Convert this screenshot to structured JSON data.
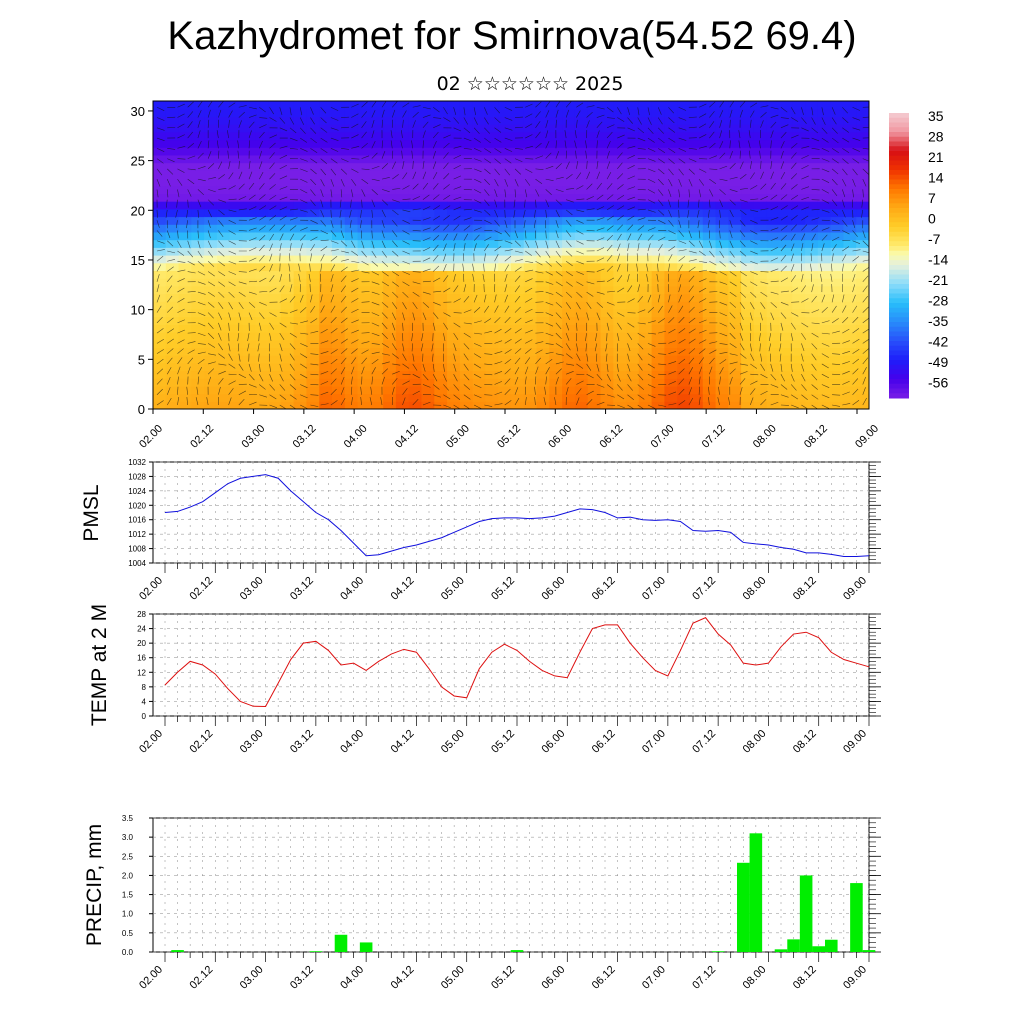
{
  "title": "Kazhydromet for Smirnova(54.52 69.4)",
  "subtitle": "02 ☆☆☆☆☆☆ 2025",
  "colors": {
    "pmsl_line": "#1010dd",
    "temp_line": "#dd1010",
    "precip_bar": "#00ee00",
    "frame": "#000000"
  },
  "chart_data": [
    {
      "type": "heatmap",
      "name_text": "",
      "x_tick_labels": [
        "02.00",
        "02.12",
        "03.00",
        "03.12",
        "04.00",
        "04.12",
        "05.00",
        "05.12",
        "06.00",
        "06.12",
        "07.00",
        "07.12",
        "08.00",
        "08.12",
        "09.00"
      ],
      "ylim": [
        0,
        31
      ],
      "y_ticks": [
        0,
        5,
        10,
        15,
        20,
        25,
        30
      ],
      "colorbar_labels": [
        "35",
        "28",
        "21",
        "14",
        "7",
        "0",
        "-7",
        "-14",
        "-21",
        "-28",
        "-35",
        "-42",
        "-49",
        "-56"
      ],
      "colorbar_range": [
        -63,
        42
      ],
      "overlay": "wind barbs and streamlines",
      "description_values": {
        "surface_warm_cores_x": [
          3.3,
          4.9,
          8.3,
          10.3
        ],
        "tropopause_height_km": 21
      }
    },
    {
      "type": "line",
      "ylabel": "PMSL",
      "x_tick_labels": [
        "02.00",
        "02.12",
        "03.00",
        "03.12",
        "04.00",
        "04.12",
        "05.00",
        "05.12",
        "06.00",
        "06.12",
        "07.00",
        "07.12",
        "08.00",
        "08.12",
        "09.00"
      ],
      "ylim": [
        1004,
        1032
      ],
      "y_ticks": [
        1004,
        1008,
        1012,
        1016,
        1020,
        1024,
        1028,
        1032
      ],
      "series": [
        {
          "x": [
            0,
            0.25,
            0.5,
            0.75,
            1.0,
            1.25,
            1.5,
            1.75,
            2.0,
            2.25,
            2.5,
            2.75,
            3.0,
            3.25,
            3.5,
            3.75,
            4.0,
            4.25,
            4.5,
            4.75,
            5.0,
            5.25,
            5.5,
            5.75,
            6.0,
            6.25,
            6.5,
            6.75,
            7.0,
            7.25,
            7.5,
            7.75,
            8.0,
            8.25,
            8.5,
            8.75,
            9.0,
            9.25,
            9.5,
            9.75,
            10.0,
            10.25,
            10.5,
            10.75,
            11.0,
            11.25,
            11.5,
            11.75,
            12.0,
            12.25,
            12.5,
            12.75,
            13.0,
            13.25,
            13.5,
            13.75,
            14.0
          ],
          "values": [
            1018,
            1018.3,
            1019.5,
            1021,
            1023.5,
            1026,
            1027.5,
            1028,
            1028.5,
            1027.5,
            1024,
            1021,
            1018,
            1016,
            1013,
            1009.5,
            1006,
            1006.3,
            1007.3,
            1008.3,
            1009,
            1010,
            1011,
            1012.5,
            1014,
            1015.5,
            1016.3,
            1016.5,
            1016.5,
            1016.3,
            1016.5,
            1017,
            1018,
            1019,
            1018.8,
            1018,
            1016.5,
            1016.7,
            1016,
            1015.8,
            1016,
            1015.5,
            1013,
            1012.8,
            1013,
            1012.5,
            1009.7,
            1009.3,
            1009,
            1008.3,
            1007.8,
            1006.8,
            1006.8,
            1006.4,
            1005.8,
            1005.8,
            1006
          ]
        }
      ]
    },
    {
      "type": "line",
      "ylabel": "TEMP at 2 M",
      "x_tick_labels": [
        "02.00",
        "02.12",
        "03.00",
        "03.12",
        "04.00",
        "04.12",
        "05.00",
        "05.12",
        "06.00",
        "06.12",
        "07.00",
        "07.12",
        "08.00",
        "08.12",
        "09.00"
      ],
      "ylim": [
        0,
        28
      ],
      "y_ticks": [
        0,
        4,
        8,
        12,
        16,
        20,
        24,
        28
      ],
      "series": [
        {
          "x": [
            0,
            0.25,
            0.5,
            0.75,
            1.0,
            1.25,
            1.5,
            1.75,
            2.0,
            2.25,
            2.5,
            2.75,
            3.0,
            3.25,
            3.5,
            3.75,
            4.0,
            4.25,
            4.5,
            4.75,
            5.0,
            5.25,
            5.5,
            5.75,
            6.0,
            6.25,
            6.5,
            6.75,
            7.0,
            7.25,
            7.5,
            7.75,
            8.0,
            8.25,
            8.5,
            8.75,
            9.0,
            9.25,
            9.5,
            9.75,
            10.0,
            10.25,
            10.5,
            10.75,
            11.0,
            11.25,
            11.5,
            11.75,
            12.0,
            12.25,
            12.5,
            12.75,
            13.0,
            13.25,
            13.5,
            13.75,
            14.0
          ],
          "values": [
            8.5,
            12,
            15,
            14,
            11.5,
            7.5,
            4,
            2.7,
            2.6,
            9,
            15.5,
            20,
            20.5,
            18,
            14,
            14.5,
            12.5,
            15,
            17,
            18.3,
            17.5,
            13,
            8,
            5.5,
            5,
            13,
            17.5,
            19.7,
            18,
            15,
            12.5,
            11,
            10.5,
            17.5,
            24,
            25,
            25,
            20,
            16,
            12.5,
            11,
            18,
            25.5,
            27,
            22.5,
            19.5,
            14.5,
            14,
            14.5,
            19,
            22.5,
            23,
            21.5,
            17.5,
            15.5,
            14.5,
            13.5
          ]
        }
      ]
    },
    {
      "type": "bar",
      "ylabel": "PRECIP, mm",
      "x_tick_labels": [
        "02.00",
        "02.12",
        "03.00",
        "03.12",
        "04.00",
        "04.12",
        "05.00",
        "05.12",
        "06.00",
        "06.12",
        "07.00",
        "07.12",
        "08.00",
        "08.12",
        "09.00"
      ],
      "ylim": [
        0,
        3.5
      ],
      "y_ticks": [
        "0.0",
        "0.5",
        "1.0",
        "1.5",
        "2.0",
        "2.5",
        "3.0",
        "3.5"
      ],
      "bar_width": 0.25,
      "bars": [
        {
          "x": 0.25,
          "value": 0.05
        },
        {
          "x": 3.0,
          "value": 0.02
        },
        {
          "x": 3.5,
          "value": 0.45
        },
        {
          "x": 4.0,
          "value": 0.25
        },
        {
          "x": 7.0,
          "value": 0.05
        },
        {
          "x": 11.0,
          "value": 0.02
        },
        {
          "x": 11.5,
          "value": 2.33
        },
        {
          "x": 11.75,
          "value": 3.1
        },
        {
          "x": 12.25,
          "value": 0.07
        },
        {
          "x": 12.5,
          "value": 0.33
        },
        {
          "x": 12.75,
          "value": 2.0
        },
        {
          "x": 13.0,
          "value": 0.15
        },
        {
          "x": 13.25,
          "value": 0.32
        },
        {
          "x": 13.75,
          "value": 1.8
        },
        {
          "x": 14.0,
          "value": 0.05
        }
      ]
    }
  ]
}
